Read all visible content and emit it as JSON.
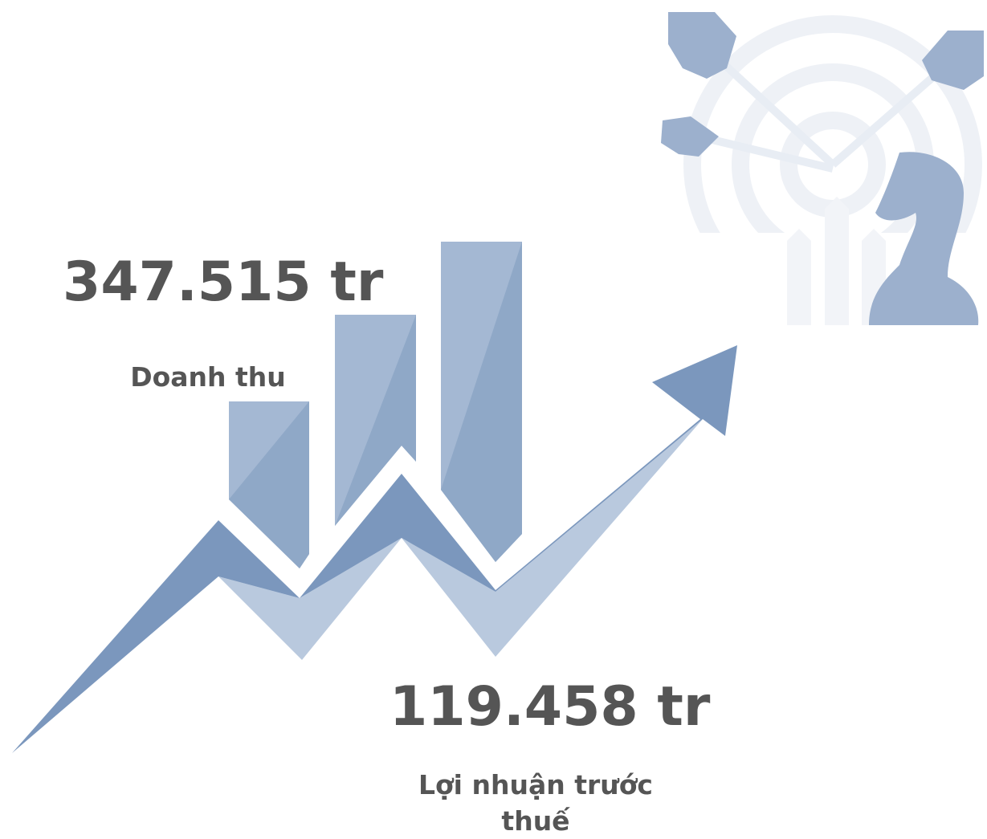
{
  "stats": [
    {
      "value": "347.515 tr",
      "label": "Doanh thu"
    },
    {
      "value": "119.458 tr",
      "label": "Lợi nhuận trước thuế"
    }
  ]
}
